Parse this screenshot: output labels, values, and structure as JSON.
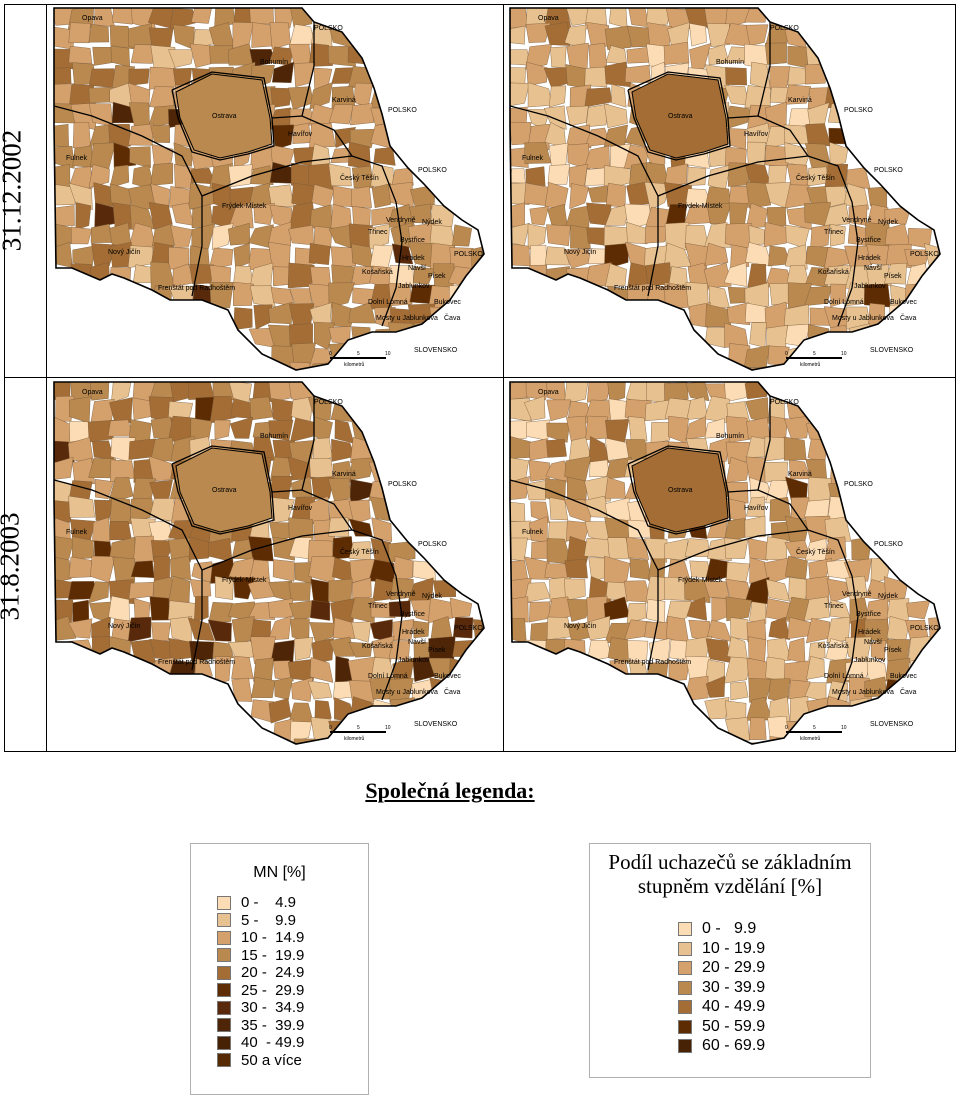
{
  "dates": [
    "31.12.2002",
    "31.8.2003"
  ],
  "countries": {
    "poland": "POLSKO",
    "slovakia": "SLOVENSKO"
  },
  "places": [
    "Opava",
    "Bohumín",
    "Karviná",
    "Ostrava",
    "Havířov",
    "Fulnek",
    "Český Těšín",
    "Frýdek-Místek",
    "Vendryně",
    "Nýdek",
    "Třinec",
    "Bystřice",
    "Nový Jičín",
    "Hrádek",
    "Košařiská",
    "Návší",
    "Písek",
    "Jablunkov",
    "Frenštát pod Radhoštěm",
    "Dolní Lomná",
    "Bukovec",
    "Mosty u Jablunkova",
    "Čava"
  ],
  "scale": {
    "ticks": [
      "0",
      "5",
      "10"
    ],
    "unit": "kilometrů"
  },
  "common_legend_title": "Společná legenda:",
  "legend_mn": {
    "title": "MN [%]",
    "classes": [
      {
        "label": "0 -    4.9",
        "color": "#fcdcb4"
      },
      {
        "label": "5 -    9.9",
        "color": "#e7c18f"
      },
      {
        "label": "10 -  14.9",
        "color": "#d4a06c"
      },
      {
        "label": "15 -  19.9",
        "color": "#b9894f"
      },
      {
        "label": "20 -  24.9",
        "color": "#a36d35"
      },
      {
        "label": "25 -  29.9",
        "color": "#5e2c02"
      },
      {
        "label": "30 -  34.9",
        "color": "#58290a"
      },
      {
        "label": "35 -  39.9",
        "color": "#4e2507"
      },
      {
        "label": "40  - 49.9",
        "color": "#482204"
      },
      {
        "label": "50 a více",
        "color": "#562a02"
      }
    ]
  },
  "legend_edu": {
    "title_line1": "Podíl uchazečů se základním",
    "title_line2": "stupněm vzdělání [%]",
    "classes": [
      {
        "label": "0 -   9.9",
        "color": "#fcdcb4"
      },
      {
        "label": "10 - 19.9",
        "color": "#e7c18f"
      },
      {
        "label": "20 - 29.9",
        "color": "#d4a06c"
      },
      {
        "label": "30 - 39.9",
        "color": "#b9894f"
      },
      {
        "label": "40 - 49.9",
        "color": "#a36d35"
      },
      {
        "label": "50 - 59.9",
        "color": "#5e2c02"
      },
      {
        "label": "60 - 69.9",
        "color": "#482204"
      }
    ]
  }
}
